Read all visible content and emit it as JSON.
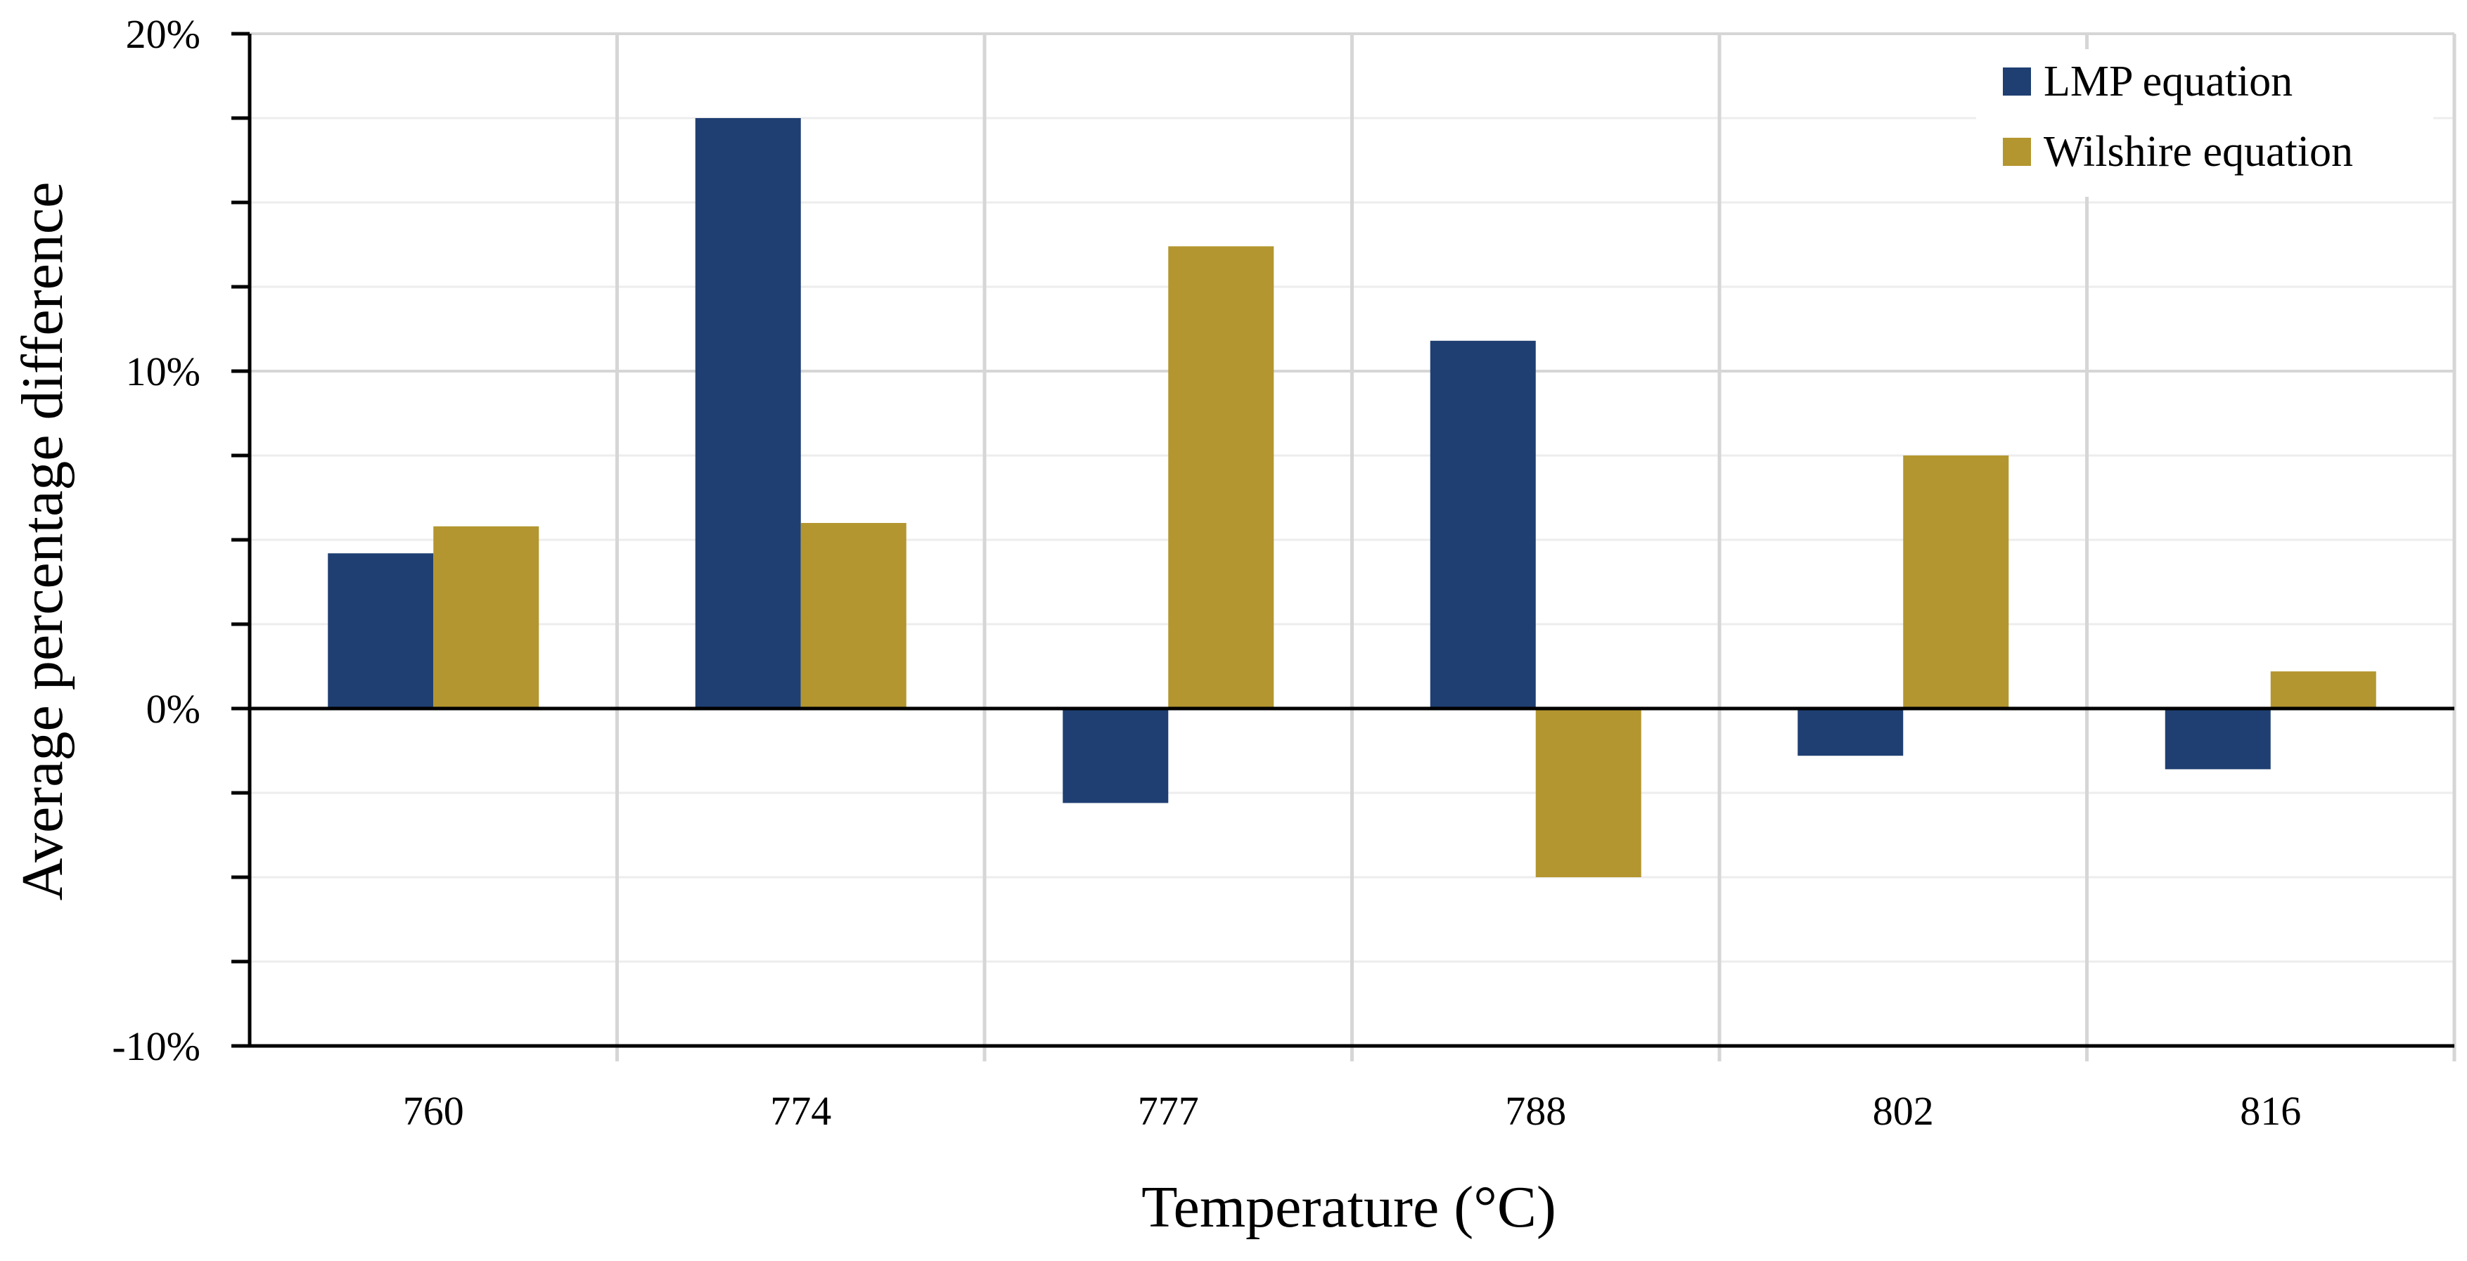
{
  "chart_data": {
    "type": "bar",
    "title": "",
    "xlabel": "Temperature (°C)",
    "ylabel": "Average percentage difference",
    "categories": [
      "760",
      "774",
      "777",
      "788",
      "802",
      "816"
    ],
    "series": [
      {
        "name": "LMP equation",
        "color": "#1f3f72",
        "values": [
          4.6,
          17.5,
          -2.8,
          10.9,
          -1.4,
          -1.8
        ]
      },
      {
        "name": "Wilshire equation",
        "color": "#b3962f",
        "values": [
          5.4,
          5.5,
          13.7,
          -5.0,
          7.5,
          1.1
        ]
      }
    ],
    "ylim": [
      -10,
      20
    ],
    "y_ticks": [
      {
        "value": 20,
        "label": "20%"
      },
      {
        "value": 10,
        "label": "10%"
      },
      {
        "value": 0,
        "label": "0%"
      },
      {
        "value": -10,
        "label": "-10%"
      }
    ],
    "y_minor_step": 2.5,
    "grid": true,
    "legend_position": "top-right"
  }
}
